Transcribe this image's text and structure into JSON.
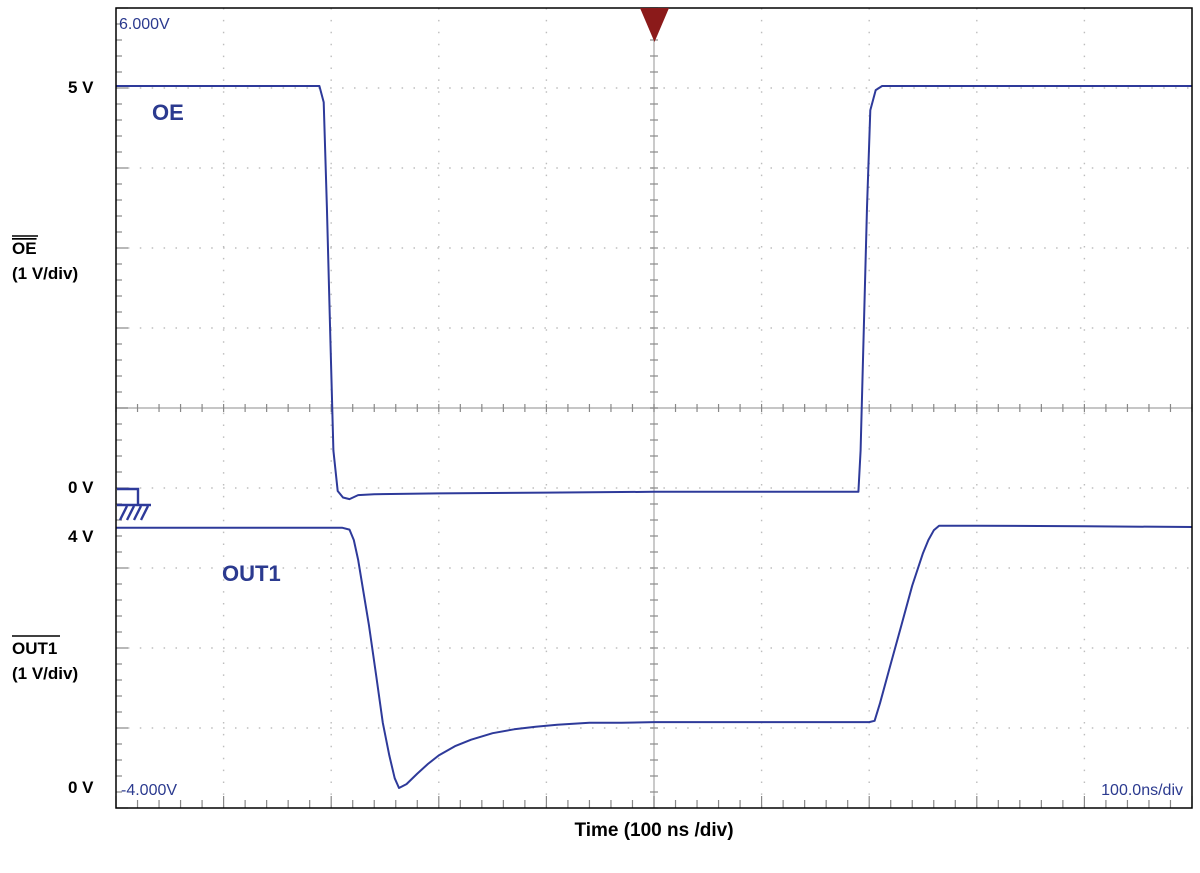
{
  "screen": {
    "top_scale": "6.000V",
    "bottom_scale": "-4.000V",
    "timebase": "100.0ns/div"
  },
  "axis": {
    "xlabel": "Time (100 ns /div)",
    "left_labels": {
      "oe_high": "5 V",
      "oe_zero": "0 V",
      "out_high": "4 V",
      "out_zero": "0 V",
      "oe_name": "OE",
      "oe_scale": "(1 V/div)",
      "out_name": "OUT1",
      "out_scale": "(1 V/div)"
    }
  },
  "colors": {
    "trace": "#2e3a9a",
    "trigger_marker": "#8b1a1a",
    "grid": "#bdbdbd"
  },
  "icons": {
    "trigger": "trigger-marker-icon",
    "ground": "ground-reference-icon"
  },
  "chart_data": {
    "type": "line",
    "title": "",
    "xlabel": "Time (100 ns /div)",
    "ylabel": "",
    "x_unit": "ns",
    "xlim": [
      -500,
      500
    ],
    "series": [
      {
        "name": "OE",
        "y_unit": "V",
        "ylim": [
          -0.5,
          5.5
        ],
        "points": [
          [
            -500,
            5.0
          ],
          [
            -311,
            5.0
          ],
          [
            -307,
            4.8
          ],
          [
            -304,
            3.5
          ],
          [
            -301,
            2.0
          ],
          [
            -298,
            0.5
          ],
          [
            -294,
            0.0
          ],
          [
            -289,
            -0.08
          ],
          [
            -283,
            -0.1
          ],
          [
            -275,
            -0.05
          ],
          [
            -260,
            -0.04
          ],
          [
            -200,
            -0.03
          ],
          [
            -100,
            -0.02
          ],
          [
            0,
            -0.01
          ],
          [
            100,
            -0.01
          ],
          [
            180,
            -0.01
          ],
          [
            190,
            -0.01
          ],
          [
            192,
            0.5
          ],
          [
            195,
            2.0
          ],
          [
            198,
            3.5
          ],
          [
            201,
            4.7
          ],
          [
            206,
            4.95
          ],
          [
            212,
            5.0
          ],
          [
            300,
            5.0
          ],
          [
            400,
            5.0
          ],
          [
            500,
            5.0
          ]
        ]
      },
      {
        "name": "OUT1",
        "y_unit": "V",
        "ylim": [
          -0.1,
          4.0
        ],
        "points": [
          [
            -500,
            3.99
          ],
          [
            -290,
            3.99
          ],
          [
            -283,
            3.96
          ],
          [
            -279,
            3.8
          ],
          [
            -275,
            3.5
          ],
          [
            -270,
            3.0
          ],
          [
            -265,
            2.5
          ],
          [
            -258,
            1.7
          ],
          [
            -252,
            1.0
          ],
          [
            -246,
            0.5
          ],
          [
            -241,
            0.15
          ],
          [
            -237,
            0.0
          ],
          [
            -230,
            0.06
          ],
          [
            -220,
            0.22
          ],
          [
            -210,
            0.37
          ],
          [
            -200,
            0.5
          ],
          [
            -185,
            0.64
          ],
          [
            -170,
            0.74
          ],
          [
            -150,
            0.84
          ],
          [
            -130,
            0.9
          ],
          [
            -110,
            0.94
          ],
          [
            -90,
            0.97
          ],
          [
            -60,
            1.0
          ],
          [
            -30,
            1.0
          ],
          [
            0,
            1.01
          ],
          [
            100,
            1.01
          ],
          [
            200,
            1.01
          ],
          [
            205,
            1.03
          ],
          [
            210,
            1.3
          ],
          [
            220,
            1.9
          ],
          [
            230,
            2.5
          ],
          [
            240,
            3.1
          ],
          [
            250,
            3.6
          ],
          [
            255,
            3.8
          ],
          [
            260,
            3.95
          ],
          [
            265,
            4.02
          ],
          [
            300,
            4.02
          ],
          [
            400,
            4.01
          ],
          [
            500,
            4.0
          ]
        ]
      }
    ],
    "grid": true,
    "divisions": {
      "x": 10,
      "y": 10
    }
  }
}
